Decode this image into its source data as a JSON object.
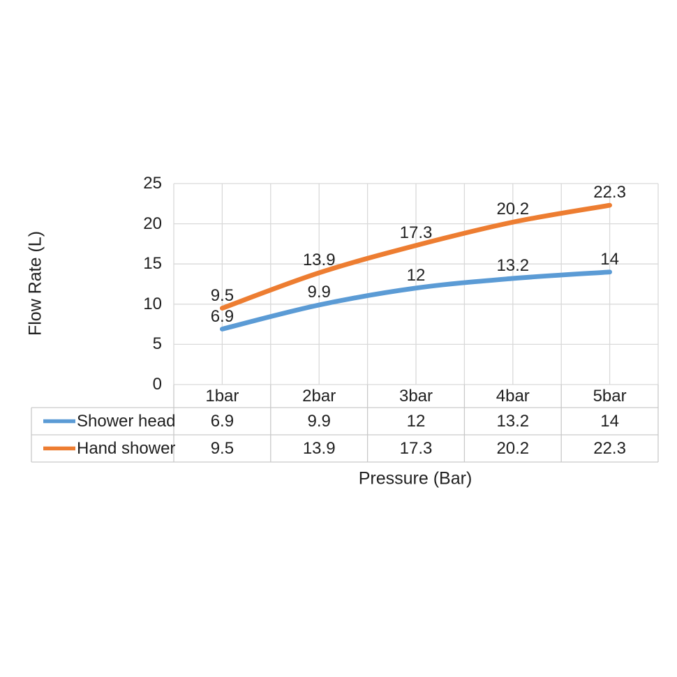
{
  "chart": {
    "y_axis_title": "Flow Rate (L)",
    "x_axis_title": "Pressure (Bar)"
  },
  "chart_data": {
    "type": "line",
    "smooth": true,
    "grid": true,
    "data_table": true,
    "legend_position": "data-table-left",
    "title": "",
    "xlabel": "Pressure (Bar)",
    "ylabel": "Flow Rate (L)",
    "categories": [
      "1bar",
      "2bar",
      "3bar",
      "4bar",
      "5bar"
    ],
    "series": [
      {
        "name": "Shower head",
        "color": "#5B9BD5",
        "values": [
          6.9,
          9.9,
          12,
          13.2,
          14
        ]
      },
      {
        "name": "Hand shower",
        "color": "#ED7D31",
        "values": [
          9.5,
          13.9,
          17.3,
          20.2,
          22.3
        ]
      }
    ],
    "ylim": [
      0,
      25
    ],
    "y_ticks": [
      0,
      5,
      10,
      15,
      20,
      25
    ],
    "colors": {
      "gridline": "#D9D9D9",
      "table_border": "#C9C9C9",
      "text": "#1f1f1f"
    }
  }
}
